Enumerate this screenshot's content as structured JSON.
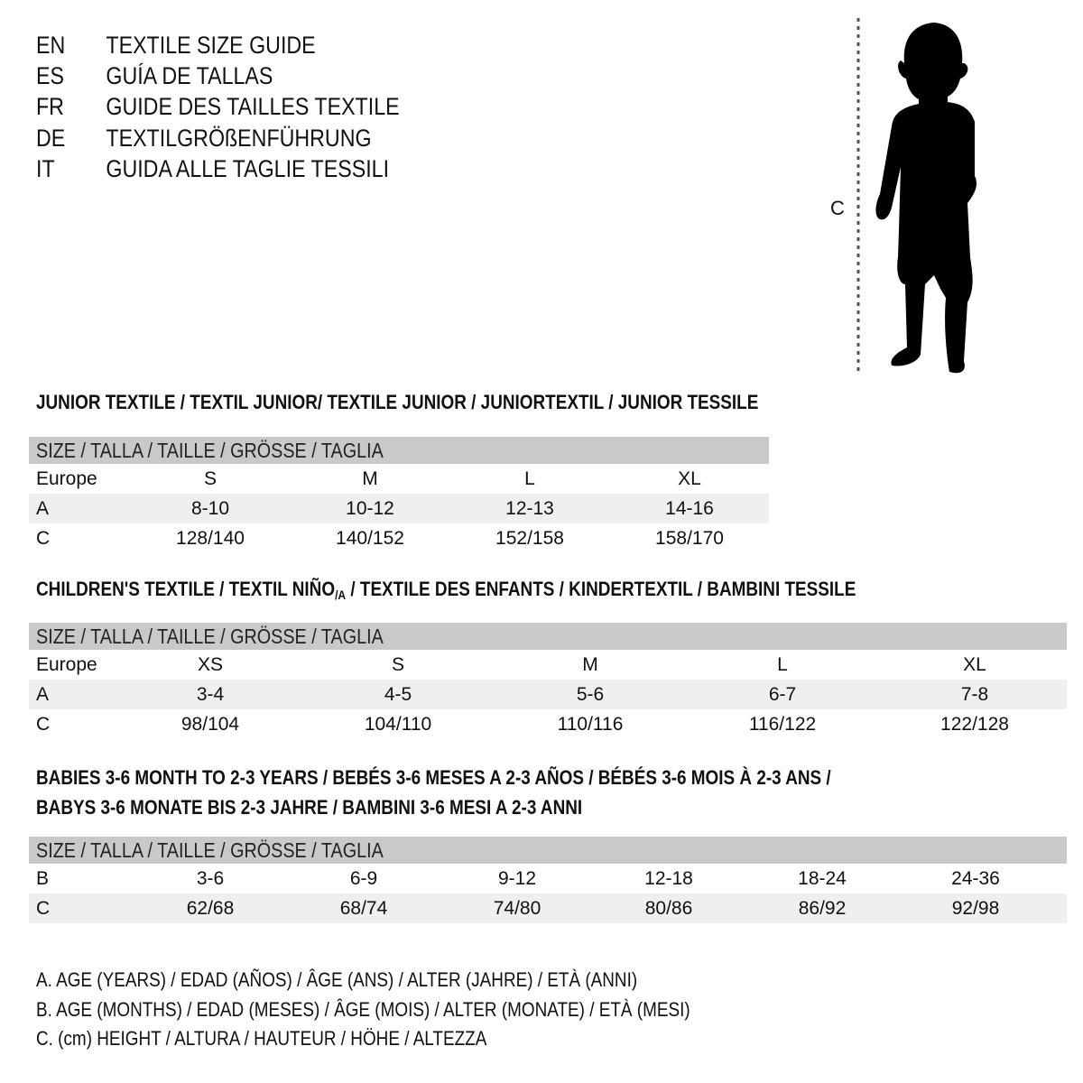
{
  "languages": [
    {
      "code": "EN",
      "text": "TEXTILE SIZE GUIDE"
    },
    {
      "code": "ES",
      "text": "GUÍA DE TALLAS"
    },
    {
      "code": "FR",
      "text": "GUIDE DES TAILLES TEXTILE"
    },
    {
      "code": "DE",
      "text": "TEXTILGRÖßENFÜHRUNG"
    },
    {
      "code": "IT",
      "text": "GUIDA ALLE TAGLIE TESSILI"
    }
  ],
  "figure": {
    "measure_label": "C",
    "icon": "child-silhouette"
  },
  "junior": {
    "title": "JUNIOR TEXTILE / TEXTIL JUNIOR/ TEXTILE JUNIOR / JUNIORTEXTIL / JUNIOR TESSILE",
    "header": "SIZE / TALLA / TAILLE / GRÖSSE / TAGLIA",
    "rows": [
      {
        "label": "Europe",
        "cells": [
          "S",
          "M",
          "L",
          "XL"
        ]
      },
      {
        "label": "A",
        "cells": [
          "8-10",
          "10-12",
          "12-13",
          "14-16"
        ]
      },
      {
        "label": "C",
        "cells": [
          "128/140",
          "140/152",
          "152/158",
          "158/170"
        ]
      }
    ]
  },
  "children": {
    "title_pre": "CHILDREN'S TEXTILE / TEXTIL NIÑO",
    "title_sub": "/A",
    "title_post": " / TEXTILE DES ENFANTS / KINDERTEXTIL / BAMBINI TESSILE",
    "header": "SIZE / TALLA / TAILLE / GRÖSSE / TAGLIA",
    "rows": [
      {
        "label": "Europe",
        "cells": [
          "XS",
          "S",
          "M",
          "L",
          "XL"
        ]
      },
      {
        "label": "A",
        "cells": [
          "3-4",
          "4-5",
          "5-6",
          "6-7",
          "7-8"
        ]
      },
      {
        "label": "C",
        "cells": [
          "98/104",
          "104/110",
          "110/116",
          "116/122",
          "122/128"
        ]
      }
    ]
  },
  "babies": {
    "title_line1": "BABIES 3-6 MONTH TO 2-3 YEARS / BEBÉS 3-6 MESES A 2-3 AÑOS / BÉBÉS 3-6 MOIS À 2-3 ANS /",
    "title_line2": "BABYS 3-6 MONATE BIS 2-3 JAHRE / BAMBINI 3-6 MESI A 2-3 ANNI",
    "header": "SIZE / TALLA / TAILLE / GRÖSSE / TAGLIA",
    "rows": [
      {
        "label": "B",
        "cells": [
          "3-6",
          "6-9",
          "9-12",
          "12-18",
          "18-24",
          "24-36"
        ]
      },
      {
        "label": "C",
        "cells": [
          "62/68",
          "68/74",
          "74/80",
          "80/86",
          "86/92",
          "92/98"
        ]
      }
    ]
  },
  "legend": [
    "A. AGE (YEARS) / EDAD (AÑOS) / ÂGE (ANS) / ALTER (JAHRE) / ETÀ (ANNI)",
    "B. AGE (MONTHS) / EDAD (MESES) / ÂGE (MOIS) / ALTER (MONATE) / ETÀ (MESI)",
    "C. (cm) HEIGHT / ALTURA / HAUTEUR / HÖHE / ALTEZZA"
  ],
  "colors": {
    "header_band": "#c9c9c9",
    "row_shade": "#efefef",
    "text": "#111111"
  }
}
